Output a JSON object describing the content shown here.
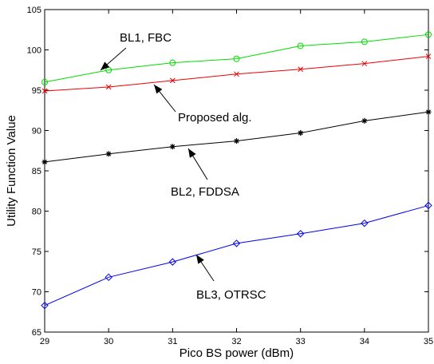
{
  "chart_data": {
    "type": "line",
    "title": "",
    "xlabel": "Pico BS power (dBm)",
    "ylabel": "Utility Function Value",
    "xlim": [
      29,
      35
    ],
    "ylim": [
      65,
      105
    ],
    "grid": false,
    "xticks": [
      29,
      30,
      31,
      32,
      33,
      34,
      35
    ],
    "yticks": [
      65,
      70,
      75,
      80,
      85,
      90,
      95,
      100,
      105
    ],
    "x": [
      29,
      30,
      31,
      32,
      33,
      34,
      35
    ],
    "series": [
      {
        "values": [
          96.0,
          97.5,
          98.4,
          98.9,
          100.5,
          101.0,
          101.9
        ],
        "color": "#00dd00",
        "marker": "circle"
      },
      {
        "values": [
          94.9,
          95.4,
          96.2,
          97.0,
          97.6,
          98.3,
          99.2
        ],
        "color": "#ee0000",
        "marker": "x"
      },
      {
        "values": [
          86.1,
          87.1,
          88.0,
          88.7,
          89.7,
          91.2,
          92.3
        ],
        "color": "#000000",
        "marker": "star"
      },
      {
        "values": [
          68.3,
          71.8,
          73.7,
          76.0,
          77.2,
          78.5,
          80.7
        ],
        "color": "#0000ee",
        "marker": "diamond"
      }
    ],
    "annotations": [
      {
        "text": "BL1, FBC",
        "series": 0
      },
      {
        "text": "Proposed alg.",
        "series": 1
      },
      {
        "text": "BL2, FDDSA",
        "series": 2
      },
      {
        "text": "BL3, OTRSC",
        "series": 3
      }
    ]
  }
}
